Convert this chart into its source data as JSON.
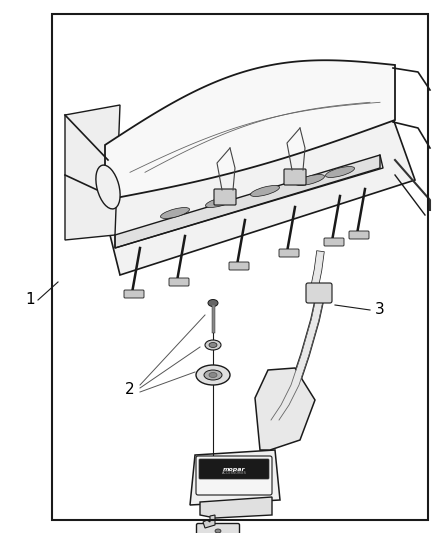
{
  "background_color": "#ffffff",
  "border_color": "#000000",
  "border_linewidth": 1.5,
  "label_1": "1",
  "label_2": "2",
  "label_3": "3",
  "line_color": "#1a1a1a",
  "figsize": [
    4.38,
    5.33
  ],
  "dpi": 100
}
